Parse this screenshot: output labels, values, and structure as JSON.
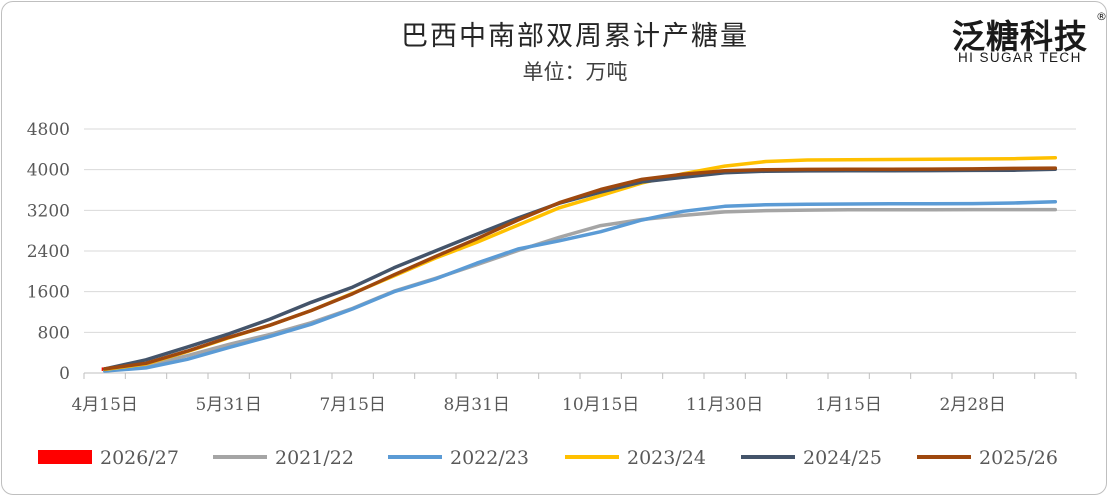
{
  "title": "巴西中南部双周累计产糖量",
  "subtitle": "单位：万吨",
  "logo": {
    "cn": "泛糖科技",
    "en": "HI SUGAR TECH",
    "reg": "®"
  },
  "chart_data": {
    "type": "line",
    "ylim": [
      0,
      4800
    ],
    "yticks": [
      0,
      800,
      1600,
      2400,
      3200,
      4000,
      4800
    ],
    "x_tick_labels": [
      "4月15日",
      "5月31日",
      "7月15日",
      "8月31日",
      "10月15日",
      "11月30日",
      "1月15日",
      "2月28日"
    ],
    "x_tick_label_index": [
      0,
      3,
      6,
      9,
      12,
      15,
      18,
      21
    ],
    "period_count": 24,
    "grid": true,
    "legend_position": "bottom",
    "series": [
      {
        "name": "2026/27",
        "color": "#ff0000",
        "legend_marker": "box",
        "values": [
          75
        ]
      },
      {
        "name": "2021/22",
        "color": "#a5a5a5",
        "values": [
          60,
          150,
          340,
          560,
          760,
          990,
          1270,
          1610,
          1860,
          2130,
          2410,
          2670,
          2900,
          3020,
          3100,
          3170,
          3195,
          3205,
          3210,
          3212,
          3213,
          3214,
          3214,
          3214
        ]
      },
      {
        "name": "2022/23",
        "color": "#5b9bd5",
        "values": [
          40,
          100,
          270,
          500,
          720,
          960,
          1260,
          1600,
          1850,
          2160,
          2440,
          2600,
          2780,
          3010,
          3180,
          3280,
          3310,
          3320,
          3325,
          3328,
          3330,
          3333,
          3345,
          3370
        ]
      },
      {
        "name": "2023/24",
        "color": "#ffc000",
        "values": [
          70,
          180,
          420,
          690,
          940,
          1230,
          1570,
          1910,
          2260,
          2570,
          2910,
          3250,
          3490,
          3740,
          3920,
          4070,
          4160,
          4190,
          4195,
          4200,
          4205,
          4210,
          4215,
          4235
        ]
      },
      {
        "name": "2024/25",
        "color": "#44546a",
        "values": [
          80,
          260,
          510,
          770,
          1060,
          1390,
          1690,
          2070,
          2400,
          2730,
          3050,
          3340,
          3560,
          3760,
          3850,
          3940,
          3970,
          3975,
          3978,
          3980,
          3982,
          3985,
          3990,
          4010
        ]
      },
      {
        "name": "2025/26",
        "color": "#9e480e",
        "values": [
          80,
          190,
          430,
          700,
          940,
          1230,
          1560,
          1930,
          2290,
          2640,
          3010,
          3350,
          3610,
          3810,
          3910,
          3980,
          4000,
          4005,
          4008,
          4010,
          4012,
          4015,
          4025,
          4030
        ]
      }
    ]
  }
}
